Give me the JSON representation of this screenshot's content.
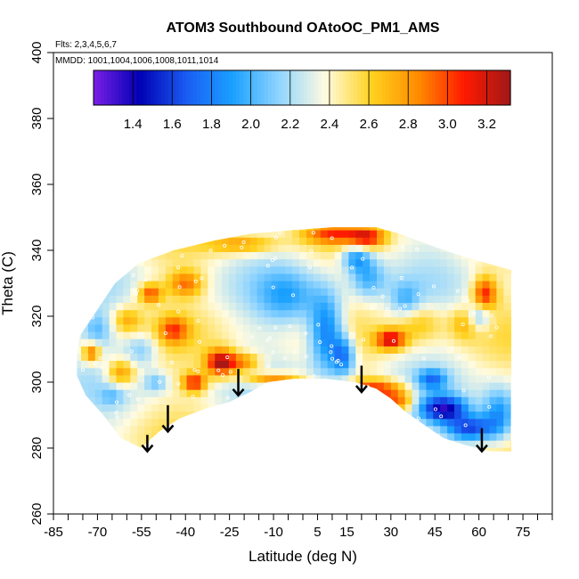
{
  "chart_data": {
    "type": "heatmap",
    "title": "ATOM3 Southbound OAtoOC_PM1_AMS",
    "subtitle_line1": "Flts: 2,3,4,5,6,7",
    "subtitle_line2": "MMDD: 1001,1004,1006,1008,1011,1014",
    "xlabel": "Latitude (deg N)",
    "ylabel": "Theta (C)",
    "xlim": [
      -85,
      85
    ],
    "ylim": [
      260,
      400
    ],
    "x_ticks": [
      -85,
      -70,
      -55,
      -40,
      -25,
      -10,
      5,
      15,
      30,
      45,
      60,
      75
    ],
    "y_ticks": [
      260,
      280,
      300,
      320,
      340,
      360,
      380,
      400
    ],
    "colorbar": {
      "range": [
        1.2,
        3.32
      ],
      "ticks": [
        1.4,
        1.6,
        1.8,
        2.0,
        2.2,
        2.4,
        2.6,
        2.8,
        3.0,
        3.2
      ],
      "colors": [
        "#7a1fe6",
        "#0000b3",
        "#1a5cf2",
        "#1aa0ff",
        "#8fd4ff",
        "#fffbe0",
        "#ffd21f",
        "#ff8c00",
        "#ff1a00",
        "#a01818"
      ]
    },
    "arrow_latitudes": [
      -53,
      -46,
      -22,
      20,
      61
    ],
    "grid": false,
    "legend": "colorbar top"
  }
}
